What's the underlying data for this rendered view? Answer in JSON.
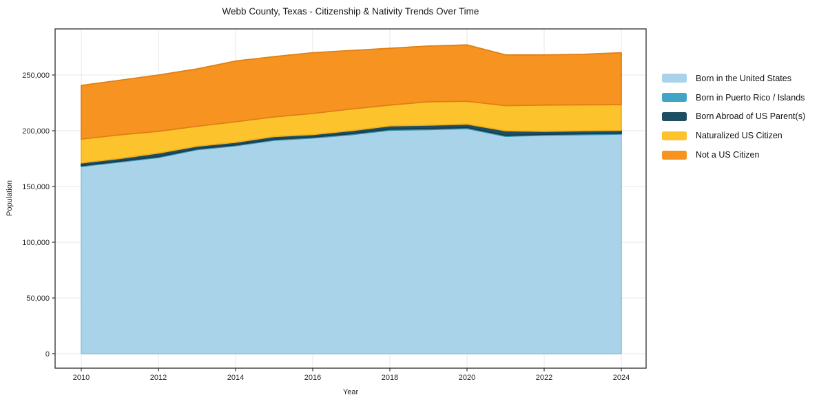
{
  "chart": {
    "title": "Webb County, Texas - Citizenship & Nativity Trends Over Time",
    "xlabel": "Year",
    "ylabel": "Population"
  },
  "chart_data": {
    "type": "area",
    "stacked": true,
    "title": "Webb County, Texas - Citizenship & Nativity Trends Over Time",
    "xlabel": "Year",
    "ylabel": "Population",
    "grid": true,
    "legend_position": "right-outside",
    "xlim": [
      2009.3,
      2024.65
    ],
    "ylim": [
      0,
      291000
    ],
    "x": [
      2010,
      2011,
      2012,
      2013,
      2014,
      2015,
      2016,
      2017,
      2018,
      2019,
      2020,
      2021,
      2022,
      2023,
      2024
    ],
    "x_ticks": [
      2010,
      2012,
      2014,
      2016,
      2018,
      2020,
      2022,
      2024
    ],
    "y_ticks": [
      0,
      50000,
      100000,
      150000,
      200000,
      250000
    ],
    "y_tick_labels": [
      "0",
      "50,000",
      "100,000",
      "150,000",
      "200,000",
      "250,000"
    ],
    "series": [
      {
        "name": "Born in the United States",
        "color": "#a9d3e9",
        "edge_color": "#93c5de",
        "values": [
          168000,
          172000,
          176000,
          183000,
          186500,
          191500,
          193500,
          196500,
          200500,
          201000,
          202000,
          195000,
          196000,
          196500,
          197000
        ]
      },
      {
        "name": "Born in Puerto Rico / Islands",
        "color": "#41a6c6",
        "edge_color": "#3391b1",
        "values": [
          700,
          700,
          800,
          800,
          800,
          800,
          800,
          900,
          900,
          900,
          900,
          800,
          800,
          800,
          800
        ]
      },
      {
        "name": "Born Abroad of US Parent(s)",
        "color": "#1f4e63",
        "edge_color": "#173b4b",
        "values": [
          2500,
          2500,
          3200,
          2400,
          2400,
          2600,
          2300,
          2700,
          3000,
          3100,
          3100,
          4200,
          2700,
          2700,
          2600
        ]
      },
      {
        "name": "Naturalized US Citizen",
        "color": "#fdc32d",
        "edge_color": "#f0b01c",
        "values": [
          21300,
          21100,
          19500,
          17800,
          18300,
          17600,
          18900,
          19400,
          18600,
          21000,
          20500,
          22500,
          23500,
          23300,
          23000
        ]
      },
      {
        "name": "Not a US Citizen",
        "color": "#f79421",
        "edge_color": "#e07f15",
        "values": [
          48200,
          49000,
          50500,
          51500,
          54500,
          54000,
          54500,
          52500,
          51000,
          50000,
          50500,
          45500,
          45000,
          45300,
          46600
        ]
      }
    ],
    "stack_totals": [
      240700,
      245300,
      250000,
      255500,
      262500,
      266500,
      270000,
      272000,
      274000,
      276000,
      277000,
      268000,
      268000,
      268600,
      270000
    ]
  },
  "style": {
    "grid_color": "#e7e7e7",
    "spine_color": "#2b2b2b",
    "tick_color": "#333333",
    "tick_label_color": "#262626",
    "background": "#ffffff"
  }
}
